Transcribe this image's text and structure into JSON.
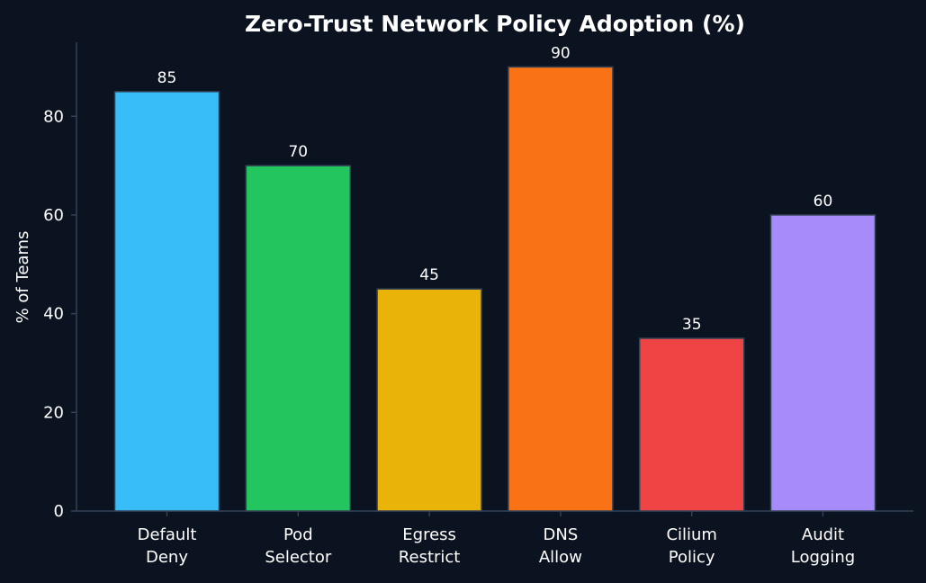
{
  "chart_data": {
    "type": "bar",
    "title": "Zero-Trust Network Policy Adoption (%)",
    "xlabel": "",
    "ylabel": "% of Teams",
    "categories": [
      [
        "Default",
        "Deny"
      ],
      [
        "Pod",
        "Selector"
      ],
      [
        "Egress",
        "Restrict"
      ],
      [
        "DNS",
        "Allow"
      ],
      [
        "Cilium",
        "Policy"
      ],
      [
        "Audit",
        "Logging"
      ]
    ],
    "values": [
      85,
      70,
      45,
      90,
      35,
      60
    ],
    "bar_colors": [
      "#38bdf8",
      "#22c55e",
      "#eab308",
      "#f97316",
      "#ef4444",
      "#a78bfa"
    ],
    "ylim": [
      0,
      95
    ],
    "yticks": [
      0,
      20,
      40,
      60,
      80
    ],
    "grid": false,
    "legend": "none"
  },
  "colors": {
    "background": "#0c1320",
    "axis": "#334155",
    "bar_edge": "#334155",
    "text": "#ffffff"
  }
}
